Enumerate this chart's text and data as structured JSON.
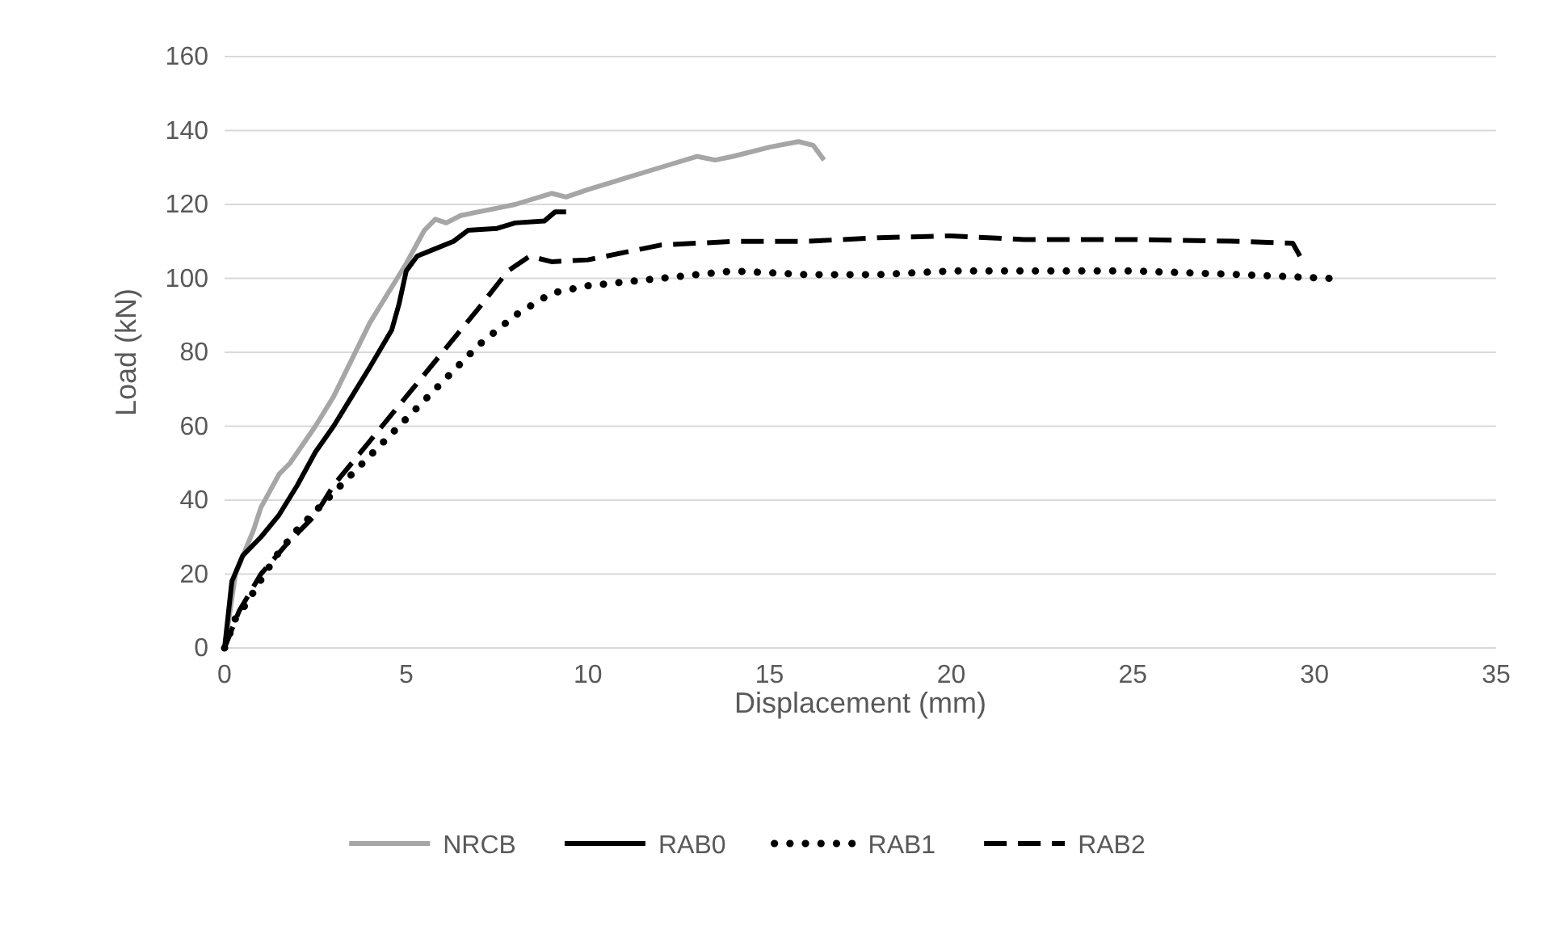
{
  "chart_data": {
    "type": "line",
    "xlabel": "Displacement (mm)",
    "ylabel": "Load (kN)",
    "xlim": [
      0,
      35
    ],
    "ylim": [
      0,
      160
    ],
    "xticks": [
      0,
      5,
      10,
      15,
      20,
      25,
      30,
      35
    ],
    "yticks": [
      0,
      20,
      40,
      60,
      80,
      100,
      120,
      140,
      160
    ],
    "grid": "y",
    "legend": "bottom",
    "marker": "none",
    "series": [
      {
        "name": "NRCB",
        "color": "#a6a6a6",
        "line_style": "solid",
        "x": [
          0,
          0.3,
          0.8,
          1,
          1.5,
          1.8,
          2.5,
          3,
          4,
          4.5,
          5,
          5.5,
          5.8,
          6.1,
          6.5,
          7,
          7.5,
          8,
          9,
          9.4,
          10,
          11,
          12,
          13,
          13.5,
          14,
          15,
          15.8,
          16.2,
          16.5
        ],
        "values": [
          0,
          20,
          32,
          38,
          47,
          50,
          60,
          68,
          88,
          96,
          104,
          113,
          116,
          115,
          117,
          118,
          119,
          120,
          123,
          122,
          124,
          127,
          130,
          133,
          132,
          133,
          135.5,
          137,
          136,
          132
        ]
      },
      {
        "name": "RAB0",
        "color": "#000000",
        "line_style": "solid",
        "x": [
          0,
          0.2,
          0.5,
          1,
          1.5,
          2,
          2.5,
          3,
          3.5,
          4,
          4.6,
          4.8,
          5,
          5.3,
          5.8,
          6.3,
          6.7,
          7.5,
          8,
          8.8,
          9.1,
          9.4
        ],
        "values": [
          0,
          18,
          25,
          30,
          36,
          44,
          53,
          60,
          68,
          76,
          86,
          93,
          102,
          106,
          108,
          110,
          113,
          113.5,
          115,
          115.5,
          118,
          118
        ]
      },
      {
        "name": "RAB1",
        "color": "#000000",
        "line_style": "dotted",
        "x": [
          0,
          0.3,
          0.6,
          1.1,
          1.5,
          2,
          3,
          4,
          5,
          6,
          7,
          8,
          9,
          10,
          12,
          14,
          16,
          18,
          20,
          22,
          25,
          28,
          30.4
        ],
        "values": [
          0,
          8,
          12,
          20,
          26,
          32,
          42,
          52,
          62,
          72,
          82,
          90,
          96,
          98,
          100,
          102,
          101,
          101,
          102,
          102,
          102,
          101,
          100
        ]
      },
      {
        "name": "RAB2",
        "color": "#000000",
        "line_style": "dashed",
        "x": [
          0,
          0.4,
          1,
          1.7,
          2.5,
          3,
          4,
          5,
          6,
          7,
          7.8,
          8.4,
          9,
          10,
          12,
          14,
          16,
          18,
          20,
          22,
          25,
          28,
          29.4,
          29.6
        ],
        "values": [
          0,
          10,
          20,
          28,
          36,
          44,
          56,
          68,
          80,
          92,
          102,
          106,
          104.5,
          105,
          109,
          110,
          110,
          111,
          111.5,
          110.5,
          110.5,
          110,
          109.5,
          106
        ]
      }
    ]
  }
}
